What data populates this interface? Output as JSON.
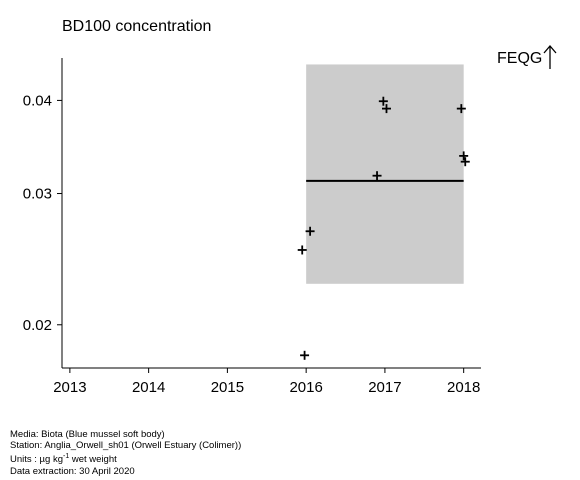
{
  "chart_data": {
    "type": "scatter",
    "title": "BD100 concentration",
    "xlabel": "",
    "ylabel": "",
    "y_scale": "log",
    "x_ticks": [
      "2013",
      "2014",
      "2015",
      "2016",
      "2017",
      "2018"
    ],
    "y_ticks": [
      "0.02",
      "0.03",
      "0.04"
    ],
    "xlim": [
      2012.9,
      2018.22
    ],
    "ylim": [
      0.0175,
      0.0456
    ],
    "grid": false,
    "points": [
      {
        "x": 2015.95,
        "y": 0.0252
      },
      {
        "x": 2016.05,
        "y": 0.0267
      },
      {
        "x": 2015.98,
        "y": 0.0182
      },
      {
        "x": 2016.9,
        "y": 0.0317
      },
      {
        "x": 2016.98,
        "y": 0.0399
      },
      {
        "x": 2017.02,
        "y": 0.039
      },
      {
        "x": 2017.97,
        "y": 0.039
      },
      {
        "x": 2018.0,
        "y": 0.0337
      },
      {
        "x": 2018.02,
        "y": 0.0331
      }
    ],
    "band": {
      "x_start": 2016.0,
      "x_end": 2018.0,
      "y_low": 0.0227,
      "y_high": 0.0447,
      "color": "#cccccc"
    },
    "trend_line": {
      "x_start": 2016.0,
      "x_end": 2018.0,
      "y": 0.0312,
      "color": "#000000"
    },
    "threshold_label": "FEQG",
    "threshold_direction": "above-plot"
  },
  "footer": {
    "media": "Media: Biota (Blue mussel soft body)",
    "station": "Station: Anglia_Orwell_sh01 (Orwell Estuary (Colimer))",
    "units_prefix": "Units : µg kg",
    "units_exp": "-1",
    "units_suffix": " wet weight",
    "extraction": "Data extraction: 30 April 2020"
  }
}
